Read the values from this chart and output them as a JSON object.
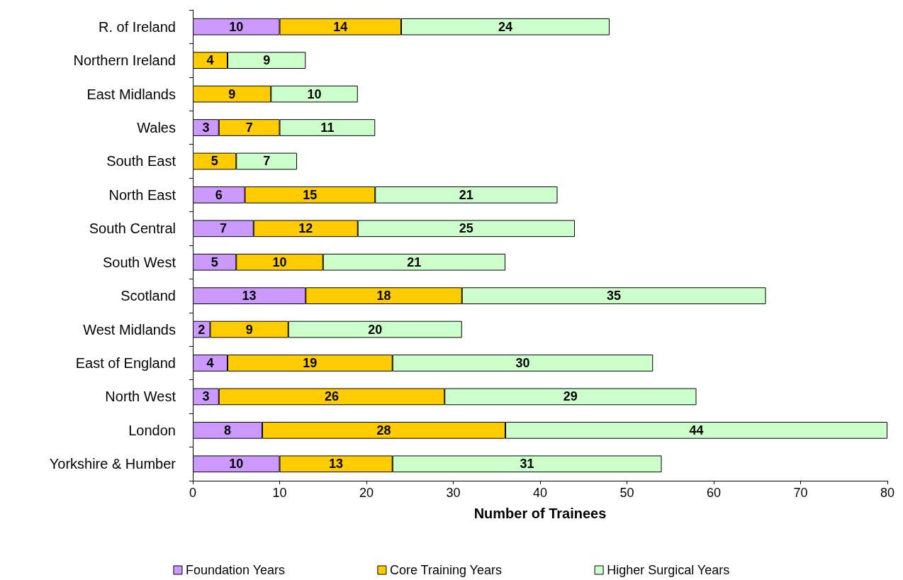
{
  "chart_data": {
    "type": "bar",
    "orientation": "horizontal",
    "stacked": true,
    "xlabel": "Number of Trainees",
    "categories": [
      "R. of Ireland",
      "Northern Ireland",
      "East Midlands",
      "Wales",
      "South East",
      "North East",
      "South Central",
      "South West",
      "Scotland",
      "West Midlands",
      "East of England",
      "North West",
      "London",
      "Yorkshire & Humber"
    ],
    "series": [
      {
        "name": "Foundation Years",
        "color": "#cc99ff",
        "values": [
          10,
          null,
          null,
          3,
          null,
          6,
          7,
          5,
          13,
          2,
          4,
          3,
          8,
          10
        ]
      },
      {
        "name": "Core Training Years",
        "color": "#ffcc00",
        "values": [
          14,
          4,
          9,
          7,
          5,
          15,
          12,
          10,
          18,
          9,
          19,
          26,
          28,
          13
        ]
      },
      {
        "name": "Higher Surgical Years",
        "color": "#ccffcc",
        "values": [
          24,
          9,
          10,
          11,
          7,
          21,
          25,
          21,
          35,
          20,
          30,
          29,
          44,
          31
        ]
      }
    ],
    "xlim": [
      0,
      80
    ],
    "xticks": [
      0,
      10,
      20,
      30,
      40,
      50,
      60,
      70,
      80
    ],
    "grid": false,
    "legend": "bottom",
    "data_labels": true
  }
}
